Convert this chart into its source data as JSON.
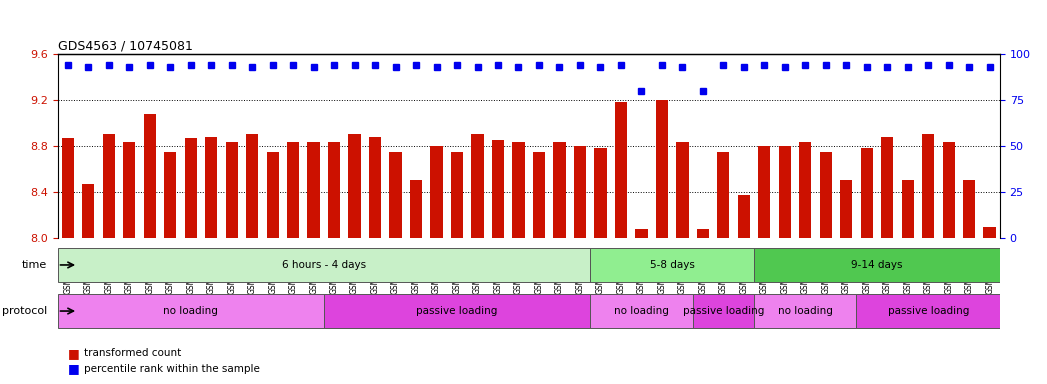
{
  "title": "GDS4563 / 10745081",
  "samples": [
    "GSM930471",
    "GSM930472",
    "GSM930473",
    "GSM930474",
    "GSM930475",
    "GSM930476",
    "GSM930477",
    "GSM930478",
    "GSM930479",
    "GSM930480",
    "GSM930481",
    "GSM930482",
    "GSM930483",
    "GSM930494",
    "GSM930495",
    "GSM930496",
    "GSM930497",
    "GSM930498",
    "GSM930499",
    "GSM930500",
    "GSM930501",
    "GSM930502",
    "GSM930503",
    "GSM930504",
    "GSM930505",
    "GSM930506",
    "GSM930484",
    "GSM930485",
    "GSM930486",
    "GSM930487",
    "GSM930507",
    "GSM930508",
    "GSM930509",
    "GSM930510",
    "GSM930488",
    "GSM930489",
    "GSM930490",
    "GSM930491",
    "GSM930492",
    "GSM930493",
    "GSM930511",
    "GSM930512",
    "GSM930513",
    "GSM930514",
    "GSM930515",
    "GSM930516"
  ],
  "bar_values": [
    8.87,
    8.47,
    8.9,
    8.83,
    9.08,
    8.75,
    8.87,
    8.88,
    8.83,
    8.9,
    8.75,
    8.83,
    8.83,
    8.83,
    8.9,
    8.88,
    8.75,
    8.5,
    8.8,
    8.75,
    8.9,
    8.85,
    8.83,
    8.75,
    8.83,
    8.8,
    8.78,
    9.18,
    8.08,
    9.2,
    8.83,
    8.08,
    8.75,
    8.37,
    8.8,
    8.8,
    8.83,
    8.75,
    8.5,
    8.78,
    8.88,
    8.5,
    8.9,
    8.83,
    8.5,
    8.1
  ],
  "percentile_values": [
    94,
    93,
    94,
    93,
    94,
    93,
    94,
    94,
    94,
    93,
    94,
    94,
    93,
    94,
    94,
    94,
    93,
    94,
    93,
    94,
    93,
    94,
    93,
    94,
    93,
    94,
    93,
    94,
    80,
    94,
    93,
    80,
    94,
    93,
    94,
    93,
    94,
    94,
    94,
    93,
    93,
    93,
    94,
    94,
    93,
    93
  ],
  "ylim": [
    8.0,
    9.6
  ],
  "yticks": [
    8.0,
    8.4,
    8.8,
    9.2,
    9.6
  ],
  "y2lim": [
    0,
    100
  ],
  "y2ticks": [
    0,
    25,
    50,
    75,
    100
  ],
  "bar_color": "#cc1100",
  "dot_color": "#0000ee",
  "grid_color": "#000000",
  "bg_color": "#ffffff",
  "time_groups": [
    {
      "label": "6 hours - 4 days",
      "start": 0,
      "end": 26,
      "color": "#c8f0c8"
    },
    {
      "label": "5-8 days",
      "start": 26,
      "end": 34,
      "color": "#90ee90"
    },
    {
      "label": "9-14 days",
      "start": 34,
      "end": 46,
      "color": "#50c850"
    }
  ],
  "protocol_groups": [
    {
      "label": "no loading",
      "start": 0,
      "end": 13,
      "color": "#ee82ee"
    },
    {
      "label": "passive loading",
      "start": 13,
      "end": 26,
      "color": "#dd44dd"
    },
    {
      "label": "no loading",
      "start": 26,
      "end": 31,
      "color": "#ee82ee"
    },
    {
      "label": "passive loading",
      "start": 31,
      "end": 34,
      "color": "#dd44dd"
    },
    {
      "label": "no loading",
      "start": 34,
      "end": 39,
      "color": "#ee82ee"
    },
    {
      "label": "passive loading",
      "start": 39,
      "end": 46,
      "color": "#dd44dd"
    }
  ],
  "legend_items": [
    {
      "label": "transformed count",
      "color": "#cc1100",
      "marker": "s"
    },
    {
      "label": "percentile rank within the sample",
      "color": "#0000ee",
      "marker": "s"
    }
  ]
}
